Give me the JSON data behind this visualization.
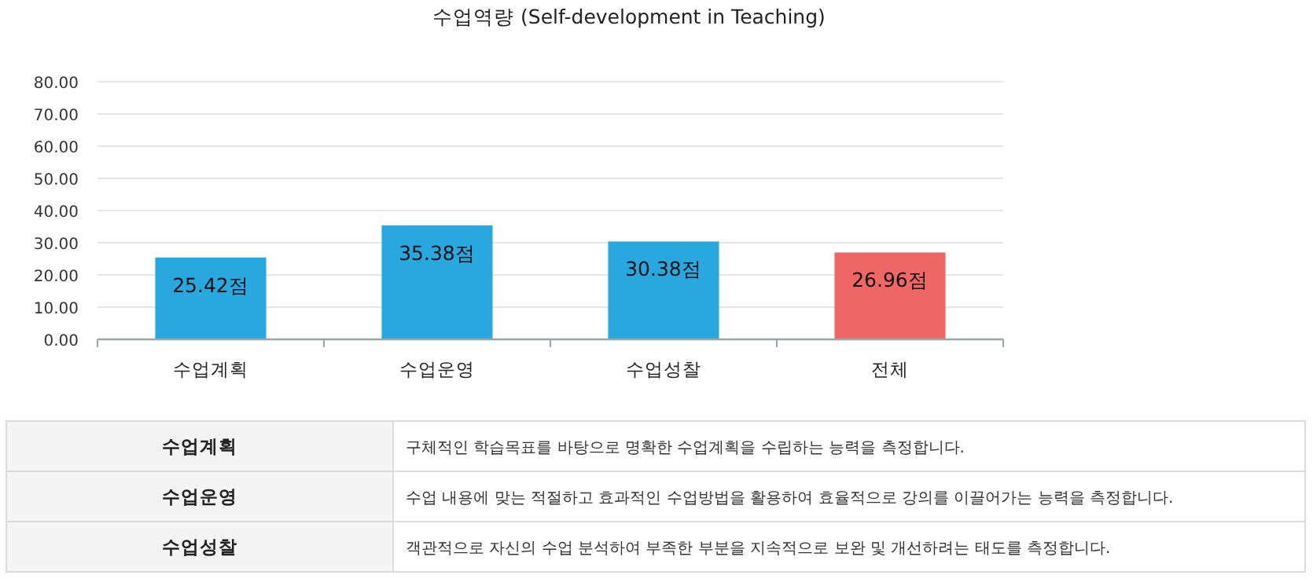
{
  "chart_data": {
    "type": "bar",
    "title": "수업역량 (Self-development in Teaching)",
    "categories": [
      "수업계획",
      "수업운영",
      "수업성찰",
      "전체"
    ],
    "values": [
      25.42,
      35.38,
      30.38,
      26.96
    ],
    "colors": [
      "#29a8e0",
      "#29a8e0",
      "#29a8e0",
      "#ee6666"
    ],
    "value_labels": [
      "25.42점",
      "35.38점",
      "30.38점",
      "26.96점"
    ],
    "ylim": [
      0,
      80
    ],
    "yticks": [
      {
        "value": 0,
        "label": "0.00"
      },
      {
        "value": 10,
        "label": "10.00"
      },
      {
        "value": 20,
        "label": "20.00"
      },
      {
        "value": 30,
        "label": "30.00"
      },
      {
        "value": 40,
        "label": "40.00"
      },
      {
        "value": 50,
        "label": "50.00"
      },
      {
        "value": 60,
        "label": "60.00"
      },
      {
        "value": 70,
        "label": "70.00"
      },
      {
        "value": 80,
        "label": "80.00"
      }
    ],
    "grid": "y",
    "annotations": [
      "수업계획",
      "구체적인 학습목표를 바탕으로 명확한 수업계획을 수립하는 능력을 측정합니다.",
      "수업운영",
      "수업 내용에 맞는 적절하고 효과적인 수업방법을 활용하여 효율적으로 강의를 이끌어가는 능력을 측정합니다.",
      "수업성찰",
      "객관적으로 자신의 수업 분석하여 부족한 부분을 지속적으로 보완 및 개선하려는 태도를 측정합니다."
    ]
  }
}
